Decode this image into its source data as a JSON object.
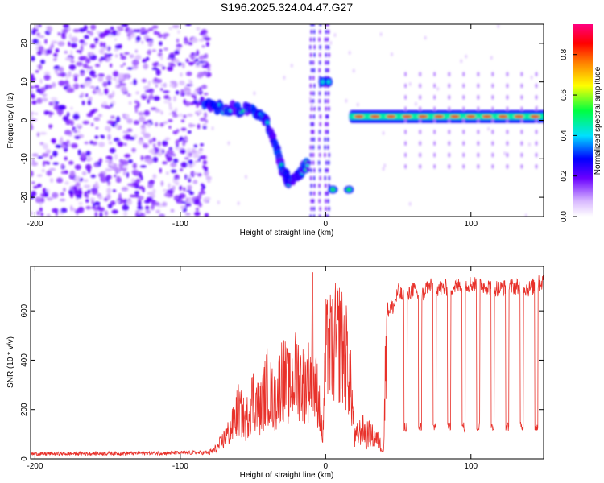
{
  "chart_data": [
    {
      "type": "heatmap",
      "title": "S196.2025.324.04.47.G27",
      "xlabel": "Height of straight line (km)",
      "ylabel": "Frequency (Hz)",
      "xlim": [
        -203,
        150
      ],
      "ylim": [
        -25,
        25
      ],
      "xticks": [
        -200,
        -100,
        0,
        100
      ],
      "yticks": [
        -20,
        -10,
        0,
        10,
        20
      ],
      "colorbar": {
        "label": "Normalized spectral amplitude",
        "range": [
          0,
          0.95
        ],
        "ticks": [
          0.0,
          0.2,
          0.4,
          0.6,
          0.8
        ]
      },
      "features": [
        {
          "name": "noise-field",
          "x_range": [
            -203,
            -80
          ],
          "y_range": [
            -25,
            25
          ],
          "amplitude": 0.15
        },
        {
          "name": "descending-track",
          "points": [
            [
              -85,
              5
            ],
            [
              -70,
              3
            ],
            [
              -55,
              3
            ],
            [
              -45,
              2
            ],
            [
              -38,
              -3
            ],
            [
              -33,
              -8
            ],
            [
              -30,
              -13
            ],
            [
              -25,
              -16
            ],
            [
              -18,
              -14
            ],
            [
              -12,
              -11
            ]
          ],
          "amplitude": 0.3
        },
        {
          "name": "near-zero-blob",
          "points": [
            [
              -2,
              10
            ],
            [
              2,
              10
            ]
          ],
          "amplitude": 0.4
        },
        {
          "name": "low-blob",
          "points": [
            [
              5,
              -18
            ],
            [
              16,
              -18
            ]
          ],
          "amplitude": 0.5
        },
        {
          "name": "steady-line",
          "x_range": [
            18,
            150
          ],
          "frequency": 1,
          "amplitude": 0.9
        }
      ]
    },
    {
      "type": "line",
      "xlabel": "Height of straight line (km)",
      "ylabel": "SNR (10 * v/v)",
      "xlim": [
        -203,
        150
      ],
      "ylim": [
        0,
        780
      ],
      "xticks": [
        -200,
        -100,
        0,
        100
      ],
      "yticks": [
        0,
        200,
        400,
        600
      ],
      "series": [
        {
          "name": "SNR",
          "color": "#e8312a",
          "profile": [
            [
              -203,
              20
            ],
            [
              -80,
              25
            ],
            [
              -75,
              40
            ],
            [
              -65,
              120
            ],
            [
              -60,
              200
            ],
            [
              -55,
              150
            ],
            [
              -50,
              250
            ],
            [
              -45,
              200
            ],
            [
              -40,
              300
            ],
            [
              -35,
              220
            ],
            [
              -30,
              340
            ],
            [
              -25,
              280
            ],
            [
              -20,
              350
            ],
            [
              -15,
              300
            ],
            [
              -10,
              330
            ],
            [
              -5,
              260
            ],
            [
              -2,
              80
            ],
            [
              0,
              420
            ],
            [
              5,
              450
            ],
            [
              10,
              480
            ],
            [
              12,
              440
            ],
            [
              15,
              400
            ],
            [
              18,
              250
            ],
            [
              20,
              80
            ],
            [
              25,
              120
            ],
            [
              30,
              100
            ],
            [
              35,
              80
            ],
            [
              40,
              40
            ],
            [
              42,
              600
            ],
            [
              47,
              620
            ],
            [
              50,
              680
            ],
            [
              55,
              640
            ],
            [
              60,
              690
            ],
            [
              65,
              650
            ],
            [
              70,
              700
            ],
            [
              80,
              690
            ],
            [
              90,
              700
            ],
            [
              100,
              710
            ],
            [
              110,
              700
            ],
            [
              120,
              690
            ],
            [
              130,
              700
            ],
            [
              140,
              690
            ],
            [
              150,
              720
            ]
          ],
          "dips": [
            55,
            65,
            75,
            85,
            95,
            105,
            115,
            125,
            135,
            145
          ],
          "spikes": [
            [
              -9,
              755
            ],
            [
              2,
              530
            ],
            [
              28,
              40
            ]
          ]
        }
      ]
    }
  ]
}
